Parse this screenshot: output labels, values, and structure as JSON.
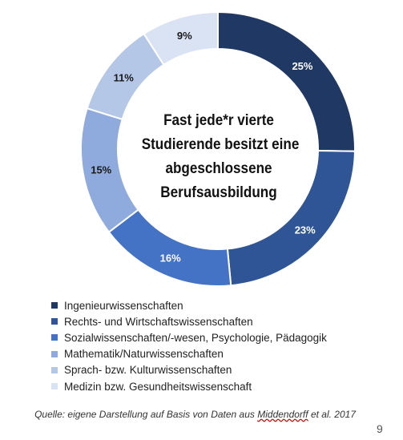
{
  "chart_data": {
    "type": "pie",
    "subtype": "donut",
    "title": "Fast jede*r vierte Studierende besitzt eine abgeschlossene Berufsausbildung",
    "title_lines": [
      "Fast jede*r vierte",
      "Studierende besitzt eine",
      "abgeschlossene",
      "Berufsausbildung"
    ],
    "categories": [
      "Ingenieurwissenschaften",
      "Rechts- und Wirtschaftswissenschaften",
      "Sozialwissenschaften/-wesen, Psychologie, Pädagogik",
      "Mathematik/Naturwissenschaften",
      "Sprach- bzw. Kulturwissenschaften",
      "Medizin bzw. Gesundheitswissenschaft"
    ],
    "values": [
      25,
      23,
      16,
      15,
      11,
      9
    ],
    "value_labels": [
      "25%",
      "23%",
      "16%",
      "15%",
      "11%",
      "9%"
    ],
    "colors": [
      "#203864",
      "#2f5597",
      "#4472c4",
      "#8faadc",
      "#b4c7e7",
      "#dae3f3"
    ],
    "label_colors": [
      "#ffffff",
      "#ffffff",
      "#ffffff",
      "#1a1a1a",
      "#1a1a1a",
      "#1a1a1a"
    ],
    "legend_position": "bottom-left"
  },
  "source": {
    "prefix": "Quelle: eigene Darstellung auf Basis von Daten aus ",
    "author": "Middendorff",
    "suffix": " et al. 2017"
  },
  "page_number": "9"
}
